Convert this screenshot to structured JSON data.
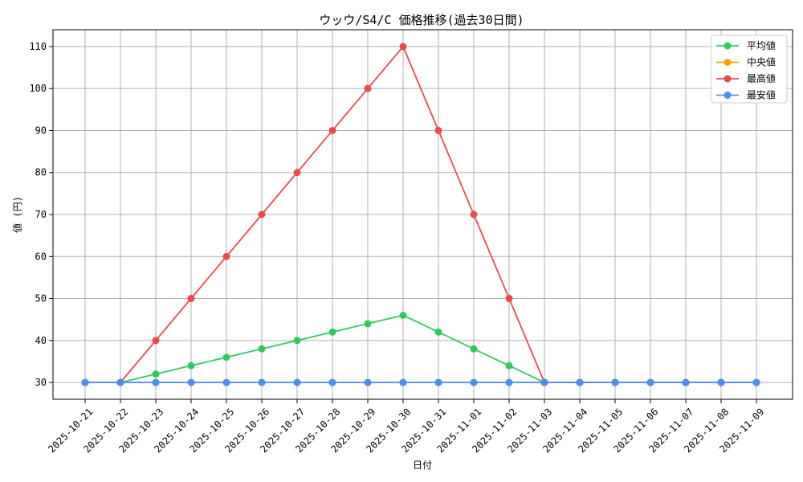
{
  "chart_data": {
    "type": "line",
    "title": "ウッウ/S4/C 価格推移(過去30日間)",
    "xlabel": "日付",
    "ylabel": "値 (円)",
    "ylim": [
      26,
      114
    ],
    "yticks": [
      30,
      40,
      50,
      60,
      70,
      80,
      90,
      100,
      110
    ],
    "grid": true,
    "legend_position": "top-right",
    "x": [
      "2025-10-21",
      "2025-10-22",
      "2025-10-23",
      "2025-10-24",
      "2025-10-25",
      "2025-10-26",
      "2025-10-27",
      "2025-10-28",
      "2025-10-29",
      "2025-10-30",
      "2025-10-31",
      "2025-11-01",
      "2025-11-02",
      "2025-11-03",
      "2025-11-04",
      "2025-11-05",
      "2025-11-06",
      "2025-11-07",
      "2025-11-08",
      "2025-11-09"
    ],
    "series": [
      {
        "name": "平均値",
        "color": "#2ecc5f",
        "values": [
          30,
          30,
          32,
          34,
          36,
          38,
          40,
          42,
          44,
          46,
          42,
          38,
          34,
          30,
          30,
          30,
          30,
          30,
          30,
          30
        ]
      },
      {
        "name": "中央値",
        "color": "#f5a30a",
        "values": [
          30,
          30,
          30,
          30,
          30,
          30,
          30,
          30,
          30,
          30,
          30,
          30,
          30,
          30,
          30,
          30,
          30,
          30,
          30,
          30
        ]
      },
      {
        "name": "最高値",
        "color": "#f04848",
        "values": [
          30,
          30,
          40,
          50,
          60,
          70,
          80,
          90,
          100,
          110,
          90,
          70,
          50,
          30,
          30,
          30,
          30,
          30,
          30,
          30
        ]
      },
      {
        "name": "最安値",
        "color": "#4a90f0",
        "values": [
          30,
          30,
          30,
          30,
          30,
          30,
          30,
          30,
          30,
          30,
          30,
          30,
          30,
          30,
          30,
          30,
          30,
          30,
          30,
          30
        ]
      }
    ]
  }
}
